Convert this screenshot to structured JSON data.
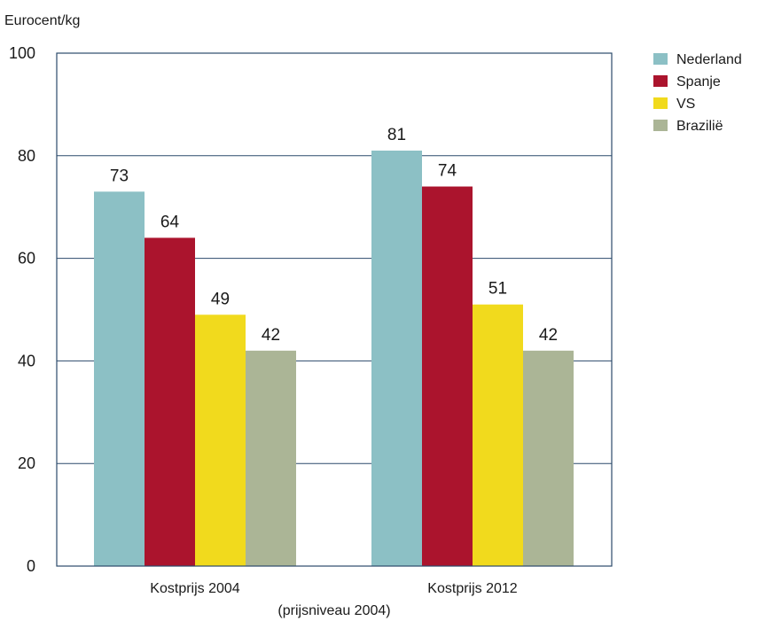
{
  "chart_data": {
    "type": "bar",
    "ylabel": "Eurocent/kg",
    "ylim": [
      0,
      100
    ],
    "yticks": [
      0,
      20,
      40,
      60,
      80,
      100
    ],
    "categories": [
      "Kostprijs 2004",
      "Kostprijs 2012"
    ],
    "category_note": "(prijsniveau 2004)",
    "grid": true,
    "legend_position": "top-right",
    "series": [
      {
        "name": "Nederland",
        "color": "#8cc0c5",
        "values": [
          73,
          81
        ],
        "labels": [
          "73",
          "81"
        ]
      },
      {
        "name": "Spanje",
        "color": "#ab142d",
        "values": [
          64,
          74
        ],
        "labels": [
          "64",
          "74"
        ]
      },
      {
        "name": "VS",
        "color": "#f1da1d",
        "values": [
          49,
          51
        ],
        "labels": [
          "49",
          "51"
        ]
      },
      {
        "name": "Brazilië",
        "color": "#abb596",
        "values": [
          42,
          42
        ],
        "labels": [
          "42",
          "42"
        ]
      }
    ]
  },
  "colors": {
    "axis": "#2b4a6b",
    "grid": "#2b4a6b"
  }
}
